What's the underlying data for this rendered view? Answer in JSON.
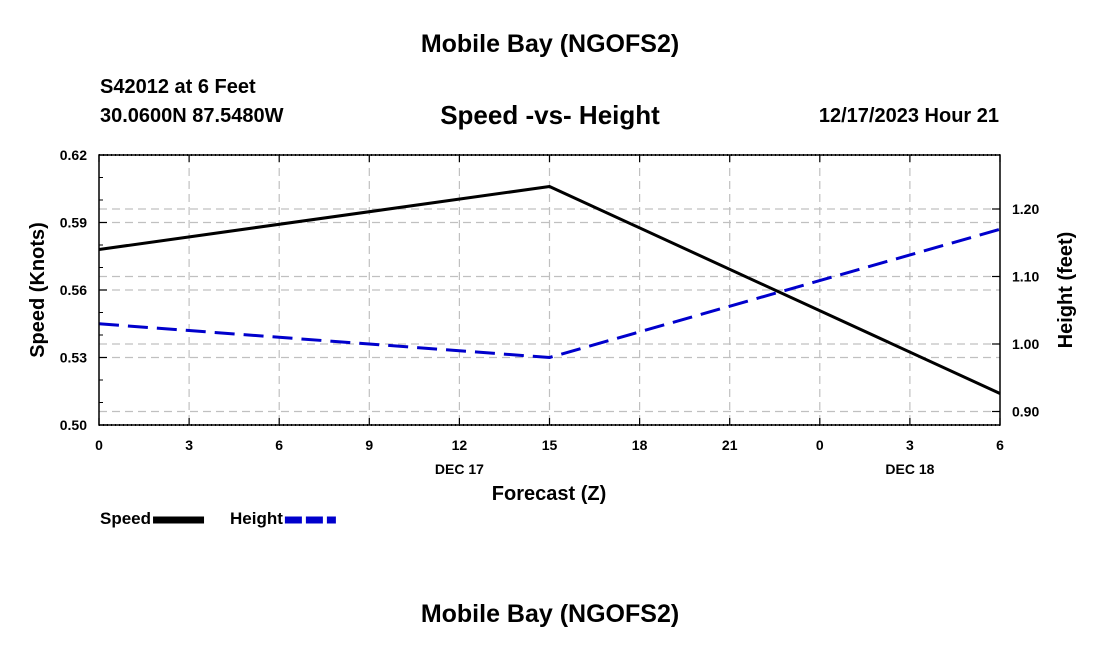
{
  "header": {
    "title": "Mobile Bay (NGOFS2)",
    "station": "S42012 at 6 Feet",
    "coords": "30.0600N  87.5480W",
    "subtitle": "Speed -vs- Height",
    "datetime": "12/17/2023 Hour 21"
  },
  "footer": {
    "title": "Mobile Bay (NGOFS2)"
  },
  "chart_data": {
    "type": "line",
    "title": "Speed -vs- Height",
    "xlabel": "Forecast (Z)",
    "ylabel": "Speed (Knots)",
    "y2label": "Height (feet)",
    "x": [
      0,
      3,
      6,
      9,
      12,
      15,
      18,
      21,
      24,
      27,
      30
    ],
    "x_tick_labels": [
      "0",
      "3",
      "6",
      "9",
      "12",
      "15",
      "18",
      "21",
      "0",
      "3",
      "6"
    ],
    "date_labels": [
      {
        "x": 12,
        "label": "DEC 17"
      },
      {
        "x": 27,
        "label": "DEC 18"
      }
    ],
    "xlim": [
      0,
      30
    ],
    "ylim": [
      0.5,
      0.62
    ],
    "y_ticks": [
      "0.50",
      "0.53",
      "0.56",
      "0.59",
      "0.62"
    ],
    "y2lim": [
      0.88,
      1.28
    ],
    "y2_ticks": [
      "0.90",
      "1.00",
      "1.10",
      "1.20"
    ],
    "series": [
      {
        "name": "Speed",
        "axis": "left",
        "color": "#000000",
        "style": "solid",
        "points": [
          [
            0,
            0.578
          ],
          [
            15,
            0.606
          ],
          [
            30,
            0.514
          ]
        ]
      },
      {
        "name": "Height",
        "axis": "right",
        "color": "#0000cc",
        "style": "dashed",
        "points": [
          [
            0,
            1.03
          ],
          [
            15,
            0.98
          ],
          [
            30,
            1.17
          ]
        ]
      }
    ],
    "legend": [
      {
        "label": "Speed",
        "color": "#000000",
        "style": "solid"
      },
      {
        "label": "Height",
        "color": "#0000cc",
        "style": "dashed"
      }
    ]
  }
}
